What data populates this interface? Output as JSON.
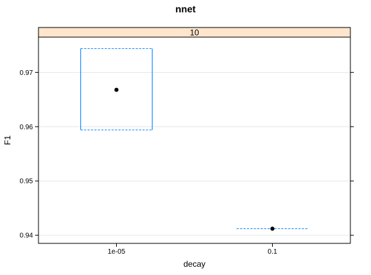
{
  "chart_data": {
    "type": "box",
    "title": "nnet",
    "strip_label": "10",
    "xlabel": "decay",
    "ylabel": "F1",
    "categories": [
      "1e-05",
      "0.1"
    ],
    "ylim": [
      0.9385,
      0.9765
    ],
    "yticks": [
      0.94,
      0.95,
      0.96,
      0.97
    ],
    "ytick_labels": [
      "0.94",
      "0.95",
      "0.96",
      "0.97"
    ],
    "grid": true,
    "boxes": [
      {
        "category": "1e-05",
        "lower": 0.9594,
        "upper": 0.9744,
        "median": 0.9668
      },
      {
        "category": "0.1",
        "lower": 0.9412,
        "upper": 0.9412,
        "median": 0.9412
      }
    ]
  },
  "colors": {
    "box": "#0080ff",
    "strip": "#ffe5cc",
    "grid": "#e6e6e6",
    "frame": "#000000",
    "point": "#000000"
  }
}
